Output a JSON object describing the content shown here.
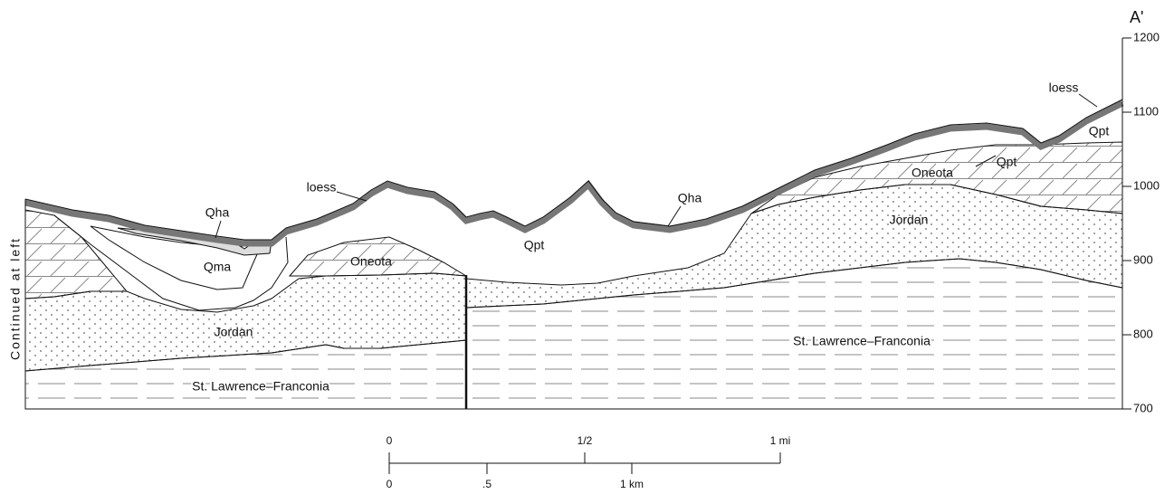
{
  "section_label": "A'",
  "side_note": "Continued at left",
  "axis": {
    "ticks": [
      700,
      800,
      900,
      1000,
      1100,
      1200
    ]
  },
  "units": [
    "loess",
    "Qpt",
    "Qpt",
    "Oneota",
    "Jordan",
    "Qha",
    "loess",
    "Qha",
    "Qma",
    "Qpt",
    "Oneota",
    "Jordan",
    "St. Lawrence–Franconia",
    "St. Lawrence–Franconia"
  ],
  "scale": {
    "miles": [
      "0",
      "1/2",
      "1 mi"
    ],
    "km": [
      "0",
      ".5",
      "1 km"
    ]
  }
}
